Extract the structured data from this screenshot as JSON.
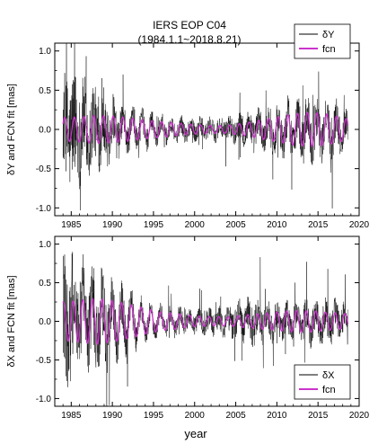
{
  "figure": {
    "title_line1": "IERS EOP C04",
    "title_line2": "(1984.1.1~2018.8.21)",
    "xlabel": "year"
  },
  "colors": {
    "observed": "#000000",
    "fcn": "#cc33cc",
    "frame": "#000000"
  },
  "chart_data": [
    {
      "type": "line",
      "panel": "top",
      "ylabel": "δY and FCN fit [mas]",
      "xlim": [
        1983.0,
        2020.0
      ],
      "ylim": [
        -1.1,
        1.1
      ],
      "x_ticks": [
        1985,
        1990,
        1995,
        2000,
        2005,
        2010,
        2015,
        2020
      ],
      "x_tick_labels": [
        "1985",
        "1990",
        "1995",
        "2000",
        "2005",
        "2010",
        "2015",
        "2020"
      ],
      "y_ticks": [
        -1.0,
        -0.5,
        0.0,
        0.5,
        1.0
      ],
      "y_tick_labels": [
        "-1.0",
        "-0.5",
        "0.0",
        "0.5",
        "1.0"
      ],
      "legend": {
        "placement": "top-right"
      },
      "series": [
        {
          "name": "δY",
          "style": "thin-black-noisy",
          "x": [
            1984.0,
            1985.0,
            1986.0,
            1987.0,
            1988.0,
            1989.0,
            1990.0,
            1991.0,
            1992.0,
            1993.0,
            1994.0,
            1995.0,
            1996.0,
            1997.0,
            1998.0,
            1999.0,
            2000.0,
            2001.0,
            2002.0,
            2003.0,
            2004.0,
            2005.0,
            2006.0,
            2007.0,
            2008.0,
            2009.0,
            2010.0,
            2011.0,
            2012.0,
            2013.0,
            2014.0,
            2015.0,
            2016.0,
            2017.0,
            2018.0,
            2018.64
          ],
          "envelope": [
            0.6,
            0.7,
            0.6,
            0.5,
            0.45,
            0.4,
            0.3,
            0.25,
            0.2,
            0.18,
            0.15,
            0.13,
            0.12,
            0.12,
            0.12,
            0.12,
            0.12,
            0.12,
            0.12,
            0.13,
            0.14,
            0.15,
            0.17,
            0.2,
            0.2,
            0.22,
            0.25,
            0.25,
            0.28,
            0.3,
            0.28,
            0.28,
            0.25,
            0.25,
            0.22,
            0.2
          ]
        },
        {
          "name": "fcn",
          "style": "sinusoid",
          "period_years": 1.18,
          "x": [
            1984.0,
            1986.0,
            1988.0,
            1990.0,
            1992.0,
            1994.0,
            1996.0,
            1998.0,
            2000.0,
            2002.0,
            2004.0,
            2006.0,
            2008.0,
            2010.0,
            2012.0,
            2014.0,
            2016.0,
            2018.0,
            2018.64
          ],
          "amplitude": [
            0.15,
            0.16,
            0.18,
            0.17,
            0.15,
            0.12,
            0.1,
            0.08,
            0.06,
            0.05,
            0.05,
            0.08,
            0.12,
            0.16,
            0.2,
            0.22,
            0.2,
            0.15,
            0.13
          ]
        }
      ]
    },
    {
      "type": "line",
      "panel": "bottom",
      "ylabel": "δX and FCN fit [mas]",
      "xlim": [
        1983.0,
        2020.0
      ],
      "ylim": [
        -1.1,
        1.1
      ],
      "x_ticks": [
        1985,
        1990,
        1995,
        2000,
        2005,
        2010,
        2015,
        2020
      ],
      "x_tick_labels": [
        "1985",
        "1990",
        "1995",
        "2000",
        "2005",
        "2010",
        "2015",
        "2020"
      ],
      "y_ticks": [
        -1.0,
        -0.5,
        0.0,
        0.5,
        1.0
      ],
      "y_tick_labels": [
        "-1.0",
        "-0.5",
        "0.0",
        "0.5",
        "1.0"
      ],
      "legend": {
        "placement": "bottom-right"
      },
      "series": [
        {
          "name": "δX",
          "style": "thin-black-noisy",
          "x": [
            1984.0,
            1985.0,
            1986.0,
            1987.0,
            1988.0,
            1989.0,
            1990.0,
            1991.0,
            1992.0,
            1993.0,
            1994.0,
            1995.0,
            1996.0,
            1997.0,
            1998.0,
            1999.0,
            2000.0,
            2001.0,
            2002.0,
            2003.0,
            2004.0,
            2005.0,
            2006.0,
            2007.0,
            2008.0,
            2009.0,
            2010.0,
            2011.0,
            2012.0,
            2013.0,
            2014.0,
            2015.0,
            2016.0,
            2017.0,
            2018.0,
            2018.64
          ],
          "envelope": [
            0.7,
            0.75,
            0.65,
            0.55,
            0.5,
            0.45,
            0.35,
            0.3,
            0.25,
            0.2,
            0.15,
            0.14,
            0.12,
            0.12,
            0.12,
            0.12,
            0.13,
            0.13,
            0.14,
            0.15,
            0.17,
            0.2,
            0.22,
            0.25,
            0.22,
            0.2,
            0.18,
            0.2,
            0.2,
            0.22,
            0.22,
            0.2,
            0.22,
            0.22,
            0.22,
            0.2
          ]
        },
        {
          "name": "fcn",
          "style": "sinusoid",
          "period_years": 1.18,
          "x": [
            1984.0,
            1986.0,
            1988.0,
            1990.0,
            1992.0,
            1994.0,
            1996.0,
            1998.0,
            2000.0,
            2002.0,
            2004.0,
            2006.0,
            2008.0,
            2010.0,
            2012.0,
            2014.0,
            2016.0,
            2018.0,
            2018.64
          ],
          "amplitude": [
            0.25,
            0.27,
            0.3,
            0.27,
            0.22,
            0.17,
            0.12,
            0.1,
            0.07,
            0.06,
            0.06,
            0.08,
            0.1,
            0.12,
            0.14,
            0.14,
            0.12,
            0.1,
            0.1
          ]
        }
      ]
    }
  ]
}
